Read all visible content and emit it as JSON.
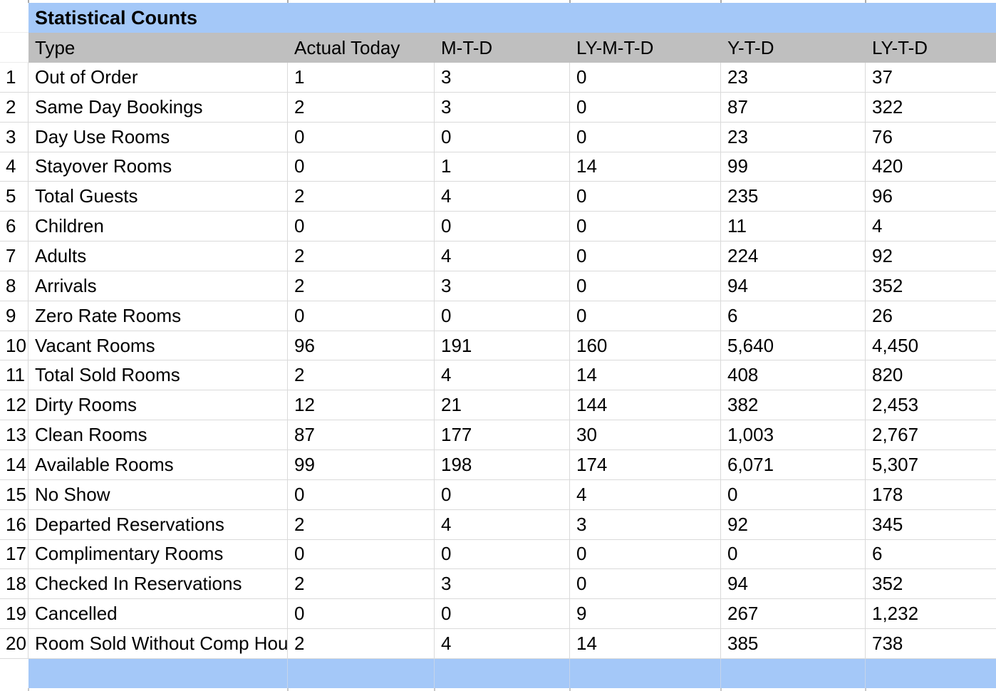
{
  "title": "Statistical Counts",
  "columns": [
    "Type",
    "Actual Today",
    "M-T-D",
    "LY-M-T-D",
    "Y-T-D",
    "LY-T-D"
  ],
  "rows": [
    {
      "num": "1",
      "type": "Out of Order",
      "values": [
        "1",
        "3",
        "0",
        "23",
        "37"
      ]
    },
    {
      "num": "2",
      "type": "Same Day Bookings",
      "values": [
        "2",
        "3",
        "0",
        "87",
        "322"
      ]
    },
    {
      "num": "3",
      "type": "Day Use Rooms",
      "values": [
        "0",
        "0",
        "0",
        "23",
        "76"
      ]
    },
    {
      "num": "4",
      "type": "Stayover Rooms",
      "values": [
        "0",
        "1",
        "14",
        "99",
        "420"
      ]
    },
    {
      "num": "5",
      "type": "Total Guests",
      "values": [
        "2",
        "4",
        "0",
        "235",
        "96"
      ]
    },
    {
      "num": "6",
      "type": "Children",
      "values": [
        "0",
        "0",
        "0",
        "11",
        "4"
      ]
    },
    {
      "num": "7",
      "type": "Adults",
      "values": [
        "2",
        "4",
        "0",
        "224",
        "92"
      ]
    },
    {
      "num": "8",
      "type": "Arrivals",
      "values": [
        "2",
        "3",
        "0",
        "94",
        "352"
      ]
    },
    {
      "num": "9",
      "type": "Zero Rate Rooms",
      "values": [
        "0",
        "0",
        "0",
        "6",
        "26"
      ]
    },
    {
      "num": "10",
      "type": "Vacant Rooms",
      "values": [
        "96",
        "191",
        "160",
        "5,640",
        "4,450"
      ]
    },
    {
      "num": "11",
      "type": "Total Sold Rooms",
      "values": [
        "2",
        "4",
        "14",
        "408",
        "820"
      ]
    },
    {
      "num": "12",
      "type": "Dirty Rooms",
      "values": [
        "12",
        "21",
        "144",
        "382",
        "2,453"
      ]
    },
    {
      "num": "13",
      "type": "Clean Rooms",
      "values": [
        "87",
        "177",
        "30",
        "1,003",
        "2,767"
      ]
    },
    {
      "num": "14",
      "type": "Available Rooms",
      "values": [
        "99",
        "198",
        "174",
        "6,071",
        "5,307"
      ]
    },
    {
      "num": "15",
      "type": "No Show",
      "values": [
        "0",
        "0",
        "4",
        "0",
        "178"
      ]
    },
    {
      "num": "16",
      "type": "Departed Reservations",
      "values": [
        "2",
        "4",
        "3",
        "92",
        "345"
      ]
    },
    {
      "num": "17",
      "type": "Complimentary Rooms",
      "values": [
        "0",
        "0",
        "0",
        "0",
        "6"
      ]
    },
    {
      "num": "18",
      "type": "Checked In Reservations",
      "values": [
        "2",
        "3",
        "0",
        "94",
        "352"
      ]
    },
    {
      "num": "19",
      "type": "Cancelled",
      "values": [
        "0",
        "0",
        "9",
        "267",
        "1,232"
      ]
    },
    {
      "num": "20",
      "type": "Room Sold Without Comp Hou",
      "values": [
        "2",
        "4",
        "14",
        "385",
        "738"
      ]
    }
  ],
  "colors": {
    "title_bg": "#A4C8F8",
    "header_bg": "#BFBFBF",
    "footer_bg": "#A4C8F8",
    "gridline": "#DADADA",
    "footer_divider": "#C6D4EA",
    "tick_top": "#ABABAB",
    "tick_bottom": "#C8C8C8",
    "text": "#000000"
  }
}
